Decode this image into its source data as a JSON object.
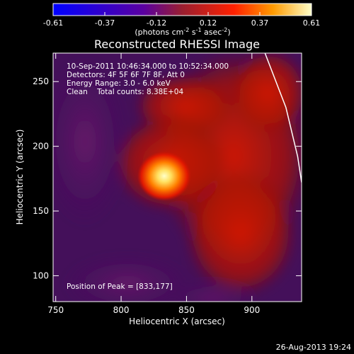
{
  "chart_data": {
    "type": "heatmap",
    "title": "Reconstructed RHESSI Image",
    "xlabel": "Heliocentric X (arcsec)",
    "ylabel": "Heliocentric Y (arcsec)",
    "xlim": [
      748,
      938
    ],
    "ylim": [
      80,
      272
    ],
    "xticks": [
      750,
      800,
      850,
      900
    ],
    "yticks": [
      100,
      150,
      200,
      250
    ],
    "colorbar": {
      "ticks": [
        "-0.61",
        "-0.37",
        "-0.12",
        "0.12",
        "0.37",
        "0.61"
      ],
      "range": [
        -0.61,
        0.61
      ],
      "unit_prefix": "(photons cm",
      "unit_exp1": "-2",
      "unit_mid": " s",
      "unit_exp2": "-1",
      "unit_mid2": " asec",
      "unit_exp3": "-2",
      "unit_suffix": ")"
    },
    "info_lines": [
      "10-Sep-2011 10:46:34.000 to 10:52:34.000",
      "Detectors: 4F 5F 6F 7F 8F, Att 0",
      "Energy Range: 3.0 - 6.0 keV",
      "Clean    Total counts: 8.38E+04"
    ],
    "peak_label": "Position of Peak = [833,177]",
    "peak": [
      833,
      177
    ],
    "peak_value": 0.61,
    "background_value": 0.05,
    "limb_curve": [
      [
        910,
        272
      ],
      [
        926,
        230
      ],
      [
        935,
        192
      ],
      [
        938,
        172
      ]
    ],
    "colors": {
      "background": "#000000",
      "text": "#ffffff"
    }
  },
  "footer_date": "26-Aug-2013 19:24"
}
